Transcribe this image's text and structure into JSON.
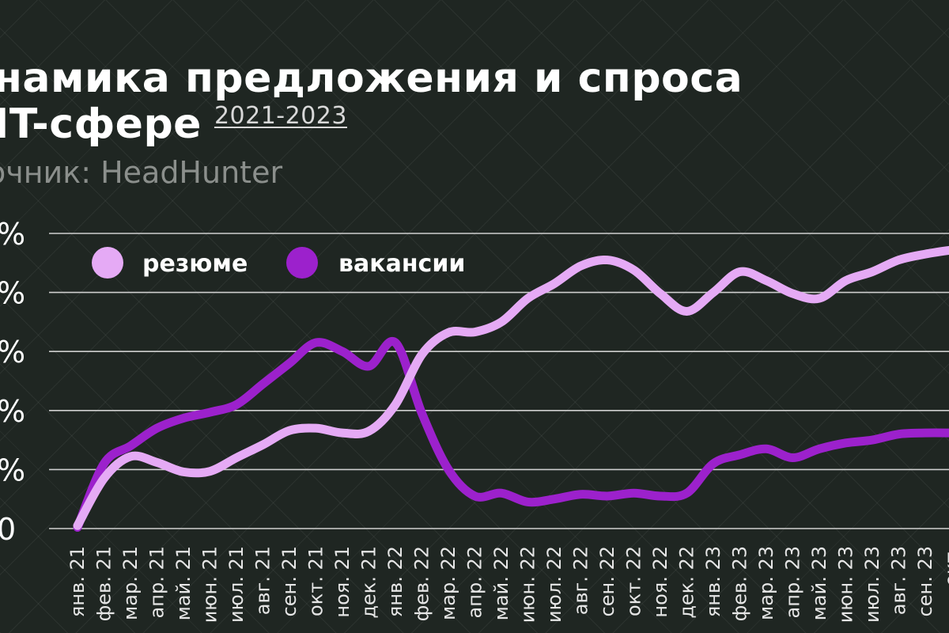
{
  "header": {
    "title_line1": "намика предложения и спроса",
    "title_line2": "IT-сфере",
    "subtitle": "2021-2023",
    "source": "очник: HeadHunter"
  },
  "chart_data": {
    "type": "line",
    "title": "намика предложения и спроса IT-сфере",
    "subtitle": "2021-2023",
    "source": "очник: HeadHunter",
    "x": [
      "янв. 21",
      "фев. 21",
      "мар. 21",
      "апр. 21",
      "май. 21",
      "июн. 21",
      "июл. 21",
      "авг. 21",
      "сен. 21",
      "окт. 21",
      "ноя. 21",
      "дек. 21",
      "янв. 22",
      "фев. 22",
      "мар. 22",
      "апр. 22",
      "май. 22",
      "июн. 22",
      "июл. 22",
      "авг. 22",
      "сен. 22",
      "окт. 22",
      "ноя. 22",
      "дек. 22",
      "янв. 23",
      "фев. 23",
      "мар. 23",
      "апр. 23",
      "май. 23",
      "июн. 23",
      "июл. 23",
      "авг. 23",
      "сен. 23",
      "окт."
    ],
    "y_tick_labels": [
      "%",
      "%",
      "%",
      "%",
      "%",
      "0"
    ],
    "ylim": [
      0,
      5
    ],
    "grid": true,
    "legend_position": "top-left",
    "series": [
      {
        "name": "резюме",
        "color": "#e5aaf5",
        "values": [
          0.05,
          0.85,
          1.22,
          1.12,
          0.96,
          0.97,
          1.2,
          1.42,
          1.66,
          1.7,
          1.62,
          1.65,
          2.1,
          2.95,
          3.32,
          3.33,
          3.5,
          3.9,
          4.15,
          4.45,
          4.55,
          4.38,
          3.98,
          3.68,
          4.0,
          4.35,
          4.2,
          3.98,
          3.9,
          4.2,
          4.35,
          4.55,
          4.65,
          4.72
        ]
      },
      {
        "name": "вакансии",
        "color": "#9c21cc",
        "values": [
          0.02,
          1.1,
          1.4,
          1.7,
          1.87,
          1.97,
          2.1,
          2.45,
          2.8,
          3.15,
          3.0,
          2.75,
          3.15,
          1.95,
          1.0,
          0.55,
          0.6,
          0.45,
          0.5,
          0.58,
          0.55,
          0.6,
          0.55,
          0.6,
          1.1,
          1.25,
          1.35,
          1.2,
          1.35,
          1.45,
          1.5,
          1.6,
          1.62,
          1.62
        ]
      }
    ]
  }
}
